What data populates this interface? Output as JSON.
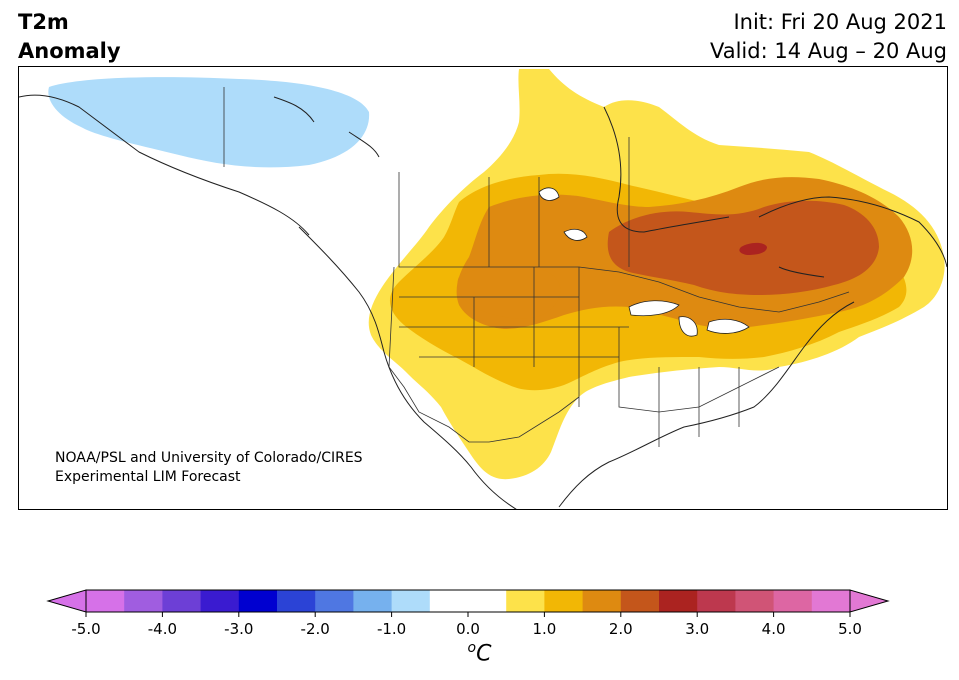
{
  "header": {
    "title_line1": "T2m",
    "title_line2": "Anomaly",
    "init": "Init: Fri 20 Aug 2021",
    "valid": "Valid: 14 Aug – 20 Aug"
  },
  "credit": {
    "line1": "NOAA/PSL and University of Colorado/CIRES",
    "line2": "Experimental LIM Forecast"
  },
  "colorbar": {
    "unit_sup": "o",
    "unit": "C",
    "ticks": [
      "-5.0",
      "-4.0",
      "-3.0",
      "-2.0",
      "-1.0",
      "0.0",
      "1.0",
      "2.0",
      "3.0",
      "4.0",
      "5.0"
    ],
    "colors": [
      "#d671e8",
      "#a05de0",
      "#6d3fd6",
      "#3a1bd0",
      "#0000d0",
      "#2b43d6",
      "#4f77e2",
      "#76b1ee",
      "#aedcfa",
      "#ffffff",
      "#ffffff",
      "#fde24a",
      "#f2b705",
      "#de8a11",
      "#c4561b",
      "#ab2320",
      "#bd384e",
      "#d05476",
      "#dd66a3",
      "#e278d4"
    ],
    "extend_min_color": "#d671e8",
    "extend_max_color": "#e278d4"
  },
  "map": {
    "region": "North America",
    "anomaly_colors": {
      "cold_1": "#aedcfa",
      "warm_0_5": "#fde24a",
      "warm_1_0": "#f2b705",
      "warm_1_5": "#de8a11",
      "warm_2_0": "#c4561b",
      "warm_3_0": "#ab2320"
    }
  }
}
